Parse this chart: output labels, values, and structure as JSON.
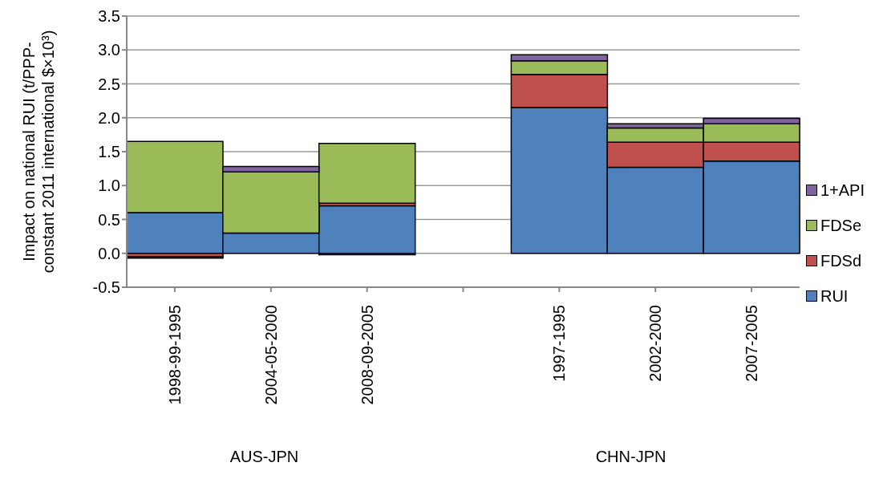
{
  "chart_data": {
    "type": "bar",
    "ylabel": "Impact on national RUI (t/PPP-constant 2011 international $×10³)",
    "categories": [
      "1998-99-1995",
      "2004-05-2000",
      "2008-09-2005",
      null,
      "1997-1995",
      "2002-2000",
      "2007-2005"
    ],
    "series": [
      {
        "name": "RUI",
        "color": "#4f81bd",
        "values": [
          0.6,
          0.3,
          0.7,
          null,
          2.15,
          1.27,
          1.36
        ]
      },
      {
        "name": "FDSd",
        "color": "#c0504d",
        "values": [
          -0.05,
          0,
          0.04,
          null,
          0.49,
          0.37,
          0.28
        ]
      },
      {
        "name": "FDSe",
        "color": "#9bbb59",
        "values": [
          1.05,
          0.9,
          0.88,
          null,
          0.2,
          0.21,
          0.27
        ]
      },
      {
        "name": "1+API",
        "color": "#8064a2",
        "values": [
          -0.02,
          0.08,
          -0.02,
          null,
          0.09,
          0.06,
          0.08
        ]
      }
    ],
    "annotations": [
      "AUS-JPN",
      "CHN-JPN"
    ],
    "stacked": true,
    "ylim": [
      -0.5,
      3.5
    ],
    "yticks": [
      -0.5,
      {
        "value": 0,
        "label": "0.0"
      },
      0.5,
      {
        "value": 1,
        "label": "1.0"
      },
      1.5,
      {
        "value": 2,
        "label": "2.0"
      },
      2.5,
      {
        "value": 3,
        "label": "3.0"
      },
      3.5
    ],
    "grid": "y",
    "legend": "right"
  }
}
